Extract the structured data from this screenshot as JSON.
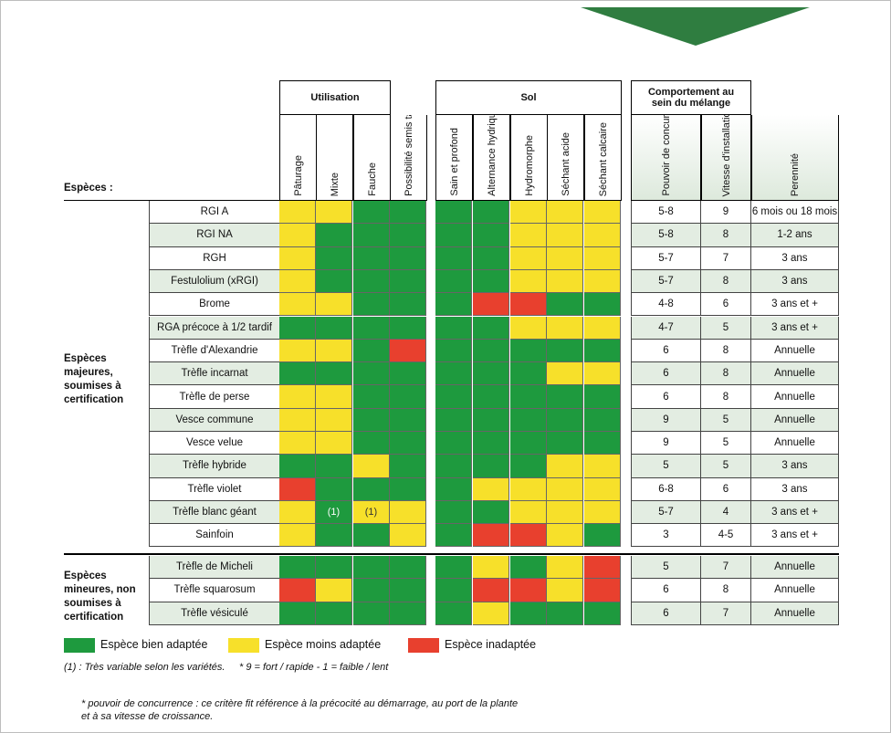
{
  "header": {
    "species_label": "Espèces :",
    "utilisation": "Utilisation",
    "sol": "Sol",
    "comportement": "Comportement au sein du mélange"
  },
  "columns": {
    "utilisation": [
      "Pâturage",
      "Mixte",
      "Fauche",
      "Possibilité semis tardif d'automne"
    ],
    "sol": [
      "Sain et profond",
      "Alternance hydrique",
      "Hydromorphe",
      "Séchant acide",
      "Séchant calcaire"
    ],
    "comportement": [
      "Pouvoir de concurrence *",
      "Vitesse d'installation *",
      "Perennité"
    ]
  },
  "groups": [
    {
      "label": "Espèces majeures, soumises à certification"
    },
    {
      "label": "Espèces mineures, non soumises à certification"
    }
  ],
  "rows": [
    {
      "name": "RGI A",
      "util": [
        "Y",
        "Y",
        "G",
        "G"
      ],
      "sol": [
        "G",
        "G",
        "Y",
        "Y",
        "Y"
      ],
      "pouvoir": "5-8",
      "vitesse": "9",
      "perennite": "6 mois ou 18 mois"
    },
    {
      "name": "RGI NA",
      "util": [
        "Y",
        "G",
        "G",
        "G"
      ],
      "sol": [
        "G",
        "G",
        "Y",
        "Y",
        "Y"
      ],
      "pouvoir": "5-8",
      "vitesse": "8",
      "perennite": "1-2 ans"
    },
    {
      "name": "RGH",
      "util": [
        "Y",
        "G",
        "G",
        "G"
      ],
      "sol": [
        "G",
        "G",
        "Y",
        "Y",
        "Y"
      ],
      "pouvoir": "5-7",
      "vitesse": "7",
      "perennite": "3 ans"
    },
    {
      "name": "Festulolium (xRGI)",
      "util": [
        "Y",
        "G",
        "G",
        "G"
      ],
      "sol": [
        "G",
        "G",
        "Y",
        "Y",
        "Y"
      ],
      "pouvoir": "5-7",
      "vitesse": "8",
      "perennite": "3 ans"
    },
    {
      "name": "Brome",
      "util": [
        "Y",
        "Y",
        "G",
        "G"
      ],
      "sol": [
        "G",
        "R",
        "R",
        "G",
        "G"
      ],
      "pouvoir": "4-8",
      "vitesse": "6",
      "perennite": "3 ans et +"
    },
    {
      "name": "RGA précoce à 1/2 tardif",
      "util": [
        "G",
        "G",
        "G",
        "G"
      ],
      "sol": [
        "G",
        "G",
        "Y",
        "Y",
        "Y"
      ],
      "pouvoir": "4-7",
      "vitesse": "5",
      "perennite": "3 ans et +"
    },
    {
      "name": "Trèfle d'Alexandrie",
      "util": [
        "Y",
        "Y",
        "G",
        "R"
      ],
      "sol": [
        "G",
        "G",
        "G",
        "G",
        "G"
      ],
      "pouvoir": "6",
      "vitesse": "8",
      "perennite": "Annuelle"
    },
    {
      "name": "Trèfle incarnat",
      "util": [
        "G",
        "G",
        "G",
        "G"
      ],
      "sol": [
        "G",
        "G",
        "G",
        "Y",
        "Y"
      ],
      "pouvoir": "6",
      "vitesse": "8",
      "perennite": "Annuelle"
    },
    {
      "name": "Trèfle de perse",
      "util": [
        "Y",
        "Y",
        "G",
        "G"
      ],
      "sol": [
        "G",
        "G",
        "G",
        "G",
        "G"
      ],
      "pouvoir": "6",
      "vitesse": "8",
      "perennite": "Annuelle"
    },
    {
      "name": "Vesce commune",
      "util": [
        "Y",
        "Y",
        "G",
        "G"
      ],
      "sol": [
        "G",
        "G",
        "G",
        "G",
        "G"
      ],
      "pouvoir": "9",
      "vitesse": "5",
      "perennite": "Annuelle"
    },
    {
      "name": "Vesce velue",
      "util": [
        "Y",
        "Y",
        "G",
        "G"
      ],
      "sol": [
        "G",
        "G",
        "G",
        "G",
        "G"
      ],
      "pouvoir": "9",
      "vitesse": "5",
      "perennite": "Annuelle"
    },
    {
      "name": "Trèfle hybride",
      "util": [
        "G",
        "G",
        "Y",
        "G"
      ],
      "sol": [
        "G",
        "G",
        "G",
        "Y",
        "Y"
      ],
      "pouvoir": "5",
      "vitesse": "5",
      "perennite": "3 ans"
    },
    {
      "name": "Trèfle violet",
      "util": [
        "R",
        "G",
        "G",
        "G"
      ],
      "sol": [
        "G",
        "Y",
        "Y",
        "Y",
        "Y"
      ],
      "pouvoir": "6-8",
      "vitesse": "6",
      "perennite": "3 ans"
    },
    {
      "name": "Trèfle blanc géant",
      "util": [
        "Y",
        "G",
        "Y",
        "Y"
      ],
      "util_text": [
        "",
        "(1)",
        "(1)",
        ""
      ],
      "sol": [
        "G",
        "G",
        "Y",
        "Y",
        "Y"
      ],
      "pouvoir": "5-7",
      "vitesse": "4",
      "perennite": "3 ans et +"
    },
    {
      "name": "Sainfoin",
      "util": [
        "Y",
        "G",
        "G",
        "Y"
      ],
      "sol": [
        "G",
        "R",
        "R",
        "Y",
        "G"
      ],
      "pouvoir": "3",
      "vitesse": "4-5",
      "perennite": "3 ans et +"
    },
    {
      "name": "Trèfle de Micheli",
      "util": [
        "G",
        "G",
        "G",
        "G"
      ],
      "sol": [
        "G",
        "Y",
        "G",
        "Y",
        "R"
      ],
      "pouvoir": "5",
      "vitesse": "7",
      "perennite": "Annuelle"
    },
    {
      "name": "Trèfle squarosum",
      "util": [
        "R",
        "Y",
        "G",
        "G"
      ],
      "sol": [
        "G",
        "R",
        "R",
        "Y",
        "R"
      ],
      "pouvoir": "6",
      "vitesse": "8",
      "perennite": "Annuelle"
    },
    {
      "name": "Trèfle vésiculé",
      "util": [
        "G",
        "G",
        "G",
        "G"
      ],
      "sol": [
        "G",
        "Y",
        "G",
        "G",
        "G"
      ],
      "pouvoir": "6",
      "vitesse": "7",
      "perennite": "Annuelle"
    }
  ],
  "legend": [
    {
      "label": "Espèce bien adaptée",
      "color": "#1e9a3e"
    },
    {
      "label": "Espèce moins adaptée",
      "color": "#f7e02a"
    },
    {
      "label": "Espèce inadaptée",
      "color": "#e8402e"
    }
  ],
  "notes": {
    "variety": "(1) : Très variable selon les variétés.",
    "scale": "* 9 = fort / rapide - 1 = faible / lent",
    "footnote_line1": "* pouvoir de concurrence : ce critère fit référence à la précocité au démarrage, au port de la plante",
    "footnote_line2": "et à sa vitesse de croissance."
  },
  "colors": {
    "G": "#1e9a3e",
    "Y": "#f7e02a",
    "R": "#e8402e"
  }
}
